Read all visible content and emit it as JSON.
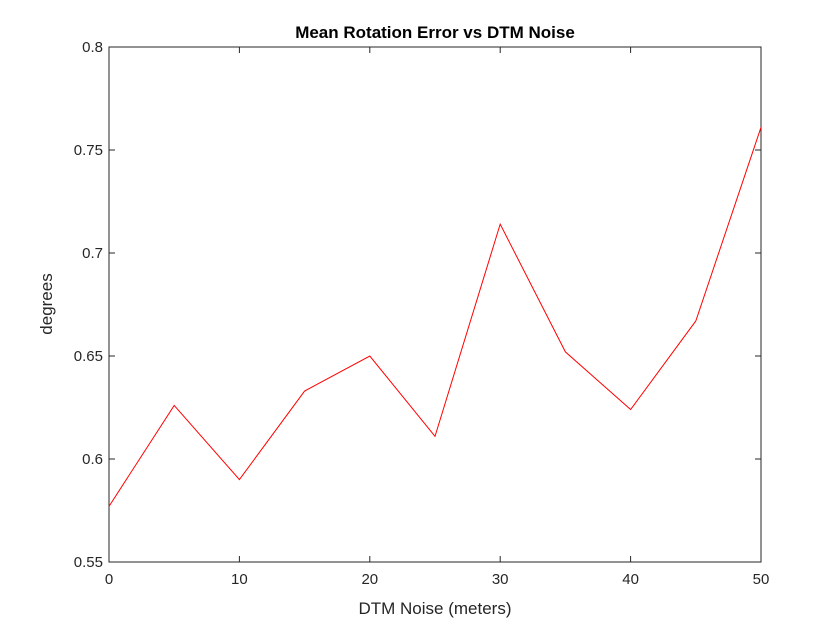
{
  "chart_data": {
    "type": "line",
    "title": "Mean Rotation Error vs DTM Noise",
    "xlabel": "DTM Noise (meters)",
    "ylabel": "degrees",
    "xlim": [
      0,
      50
    ],
    "ylim": [
      0.55,
      0.8
    ],
    "xticks": [
      0,
      10,
      20,
      30,
      40,
      50
    ],
    "xtick_labels": [
      "0",
      "10",
      "20",
      "30",
      "40",
      "50"
    ],
    "yticks": [
      0.55,
      0.6,
      0.65,
      0.7,
      0.75,
      0.8
    ],
    "ytick_labels": [
      "0.55",
      "0.6",
      "0.65",
      "0.7",
      "0.75",
      "0.8"
    ],
    "grid": false,
    "series": [
      {
        "color": "#ff0000",
        "x": [
          0,
          5,
          10,
          15,
          20,
          25,
          30,
          35,
          40,
          45,
          50
        ],
        "y": [
          0.577,
          0.626,
          0.59,
          0.633,
          0.65,
          0.611,
          0.714,
          0.652,
          0.624,
          0.667,
          0.761
        ]
      }
    ]
  }
}
